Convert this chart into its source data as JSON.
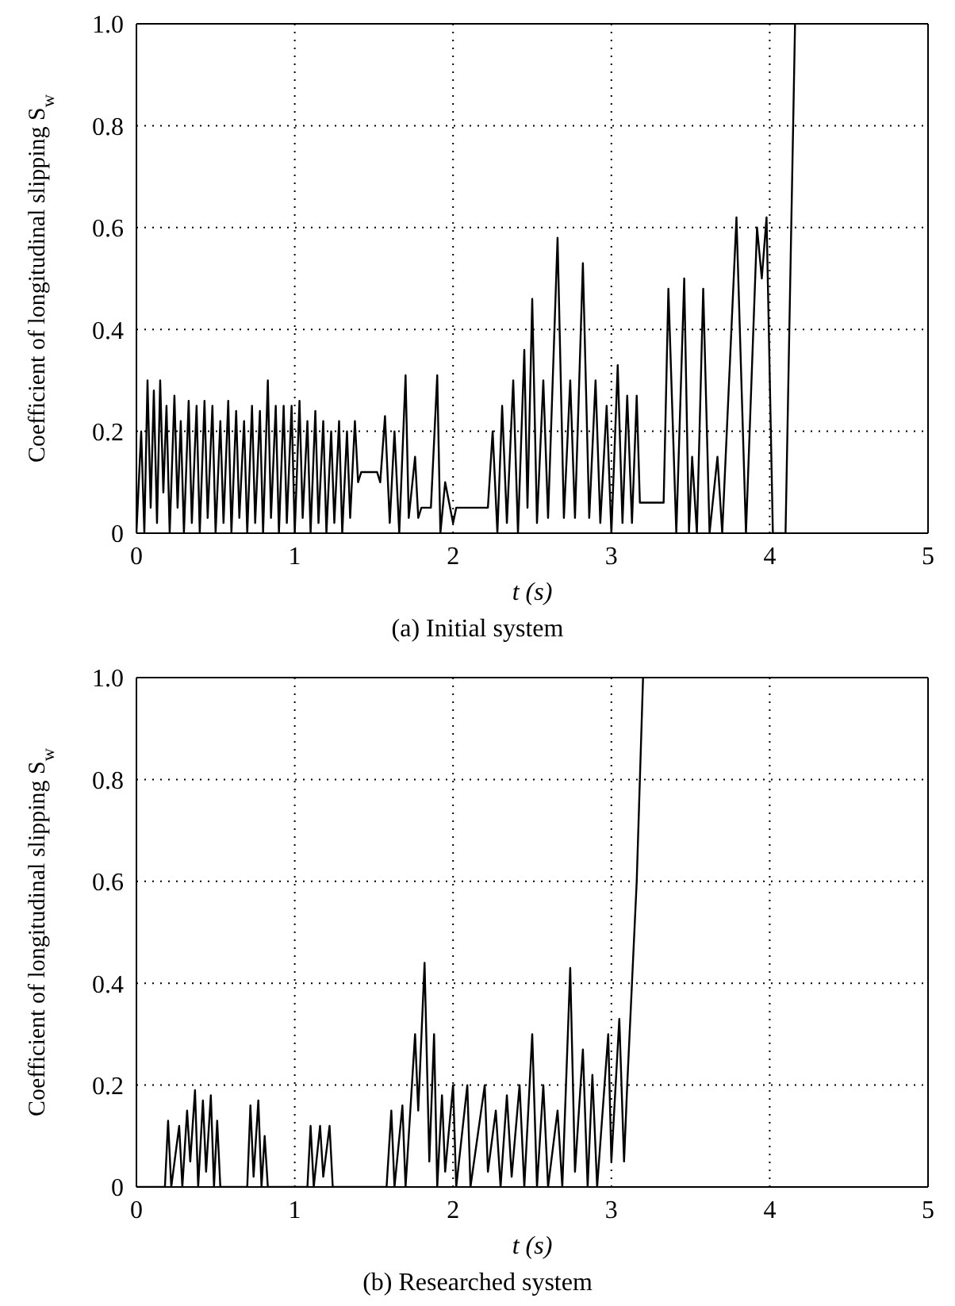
{
  "chart_data": [
    {
      "type": "line",
      "title": "(a)  Initial system",
      "xlabel": "t (s)",
      "ylabel": "Coefficient of longitudinal slipping S$_{w}$",
      "color": "#000000",
      "line_style": "solid",
      "grid": true,
      "xlim": [
        0,
        5
      ],
      "xticks": [
        0,
        1,
        2,
        3,
        4,
        5
      ],
      "ylim": [
        0,
        1
      ],
      "yticks": [
        0,
        0.2,
        0.4,
        0.6,
        0.8,
        {
          "value": 1,
          "label": "1.0"
        }
      ],
      "x": [
        0,
        0.03,
        0.05,
        0.07,
        0.09,
        0.11,
        0.13,
        0.15,
        0.17,
        0.19,
        0.21,
        0.24,
        0.26,
        0.28,
        0.3,
        0.33,
        0.35,
        0.38,
        0.4,
        0.43,
        0.45,
        0.48,
        0.5,
        0.53,
        0.55,
        0.58,
        0.6,
        0.63,
        0.65,
        0.68,
        0.7,
        0.73,
        0.75,
        0.78,
        0.8,
        0.83,
        0.85,
        0.88,
        0.9,
        0.93,
        0.95,
        0.98,
        1.0,
        1.03,
        1.05,
        1.08,
        1.1,
        1.13,
        1.15,
        1.18,
        1.2,
        1.23,
        1.25,
        1.28,
        1.3,
        1.33,
        1.35,
        1.38,
        1.4,
        1.42,
        1.52,
        1.54,
        1.57,
        1.6,
        1.63,
        1.66,
        1.7,
        1.72,
        1.76,
        1.78,
        1.8,
        1.86,
        1.9,
        1.92,
        1.95,
        2.0,
        2.02,
        2.22,
        2.25,
        2.28,
        2.31,
        2.34,
        2.38,
        2.41,
        2.45,
        2.47,
        2.5,
        2.53,
        2.57,
        2.6,
        2.66,
        2.7,
        2.74,
        2.77,
        2.82,
        2.86,
        2.9,
        2.93,
        2.97,
        3.0,
        3.04,
        3.07,
        3.1,
        3.13,
        3.16,
        3.18,
        3.33,
        3.36,
        3.41,
        3.46,
        3.49,
        3.51,
        3.54,
        3.58,
        3.62,
        3.67,
        3.7,
        3.79,
        3.85,
        3.92,
        3.95,
        3.98,
        4.02,
        4.1,
        4.16
      ],
      "values": [
        0,
        0.2,
        0,
        0.3,
        0.05,
        0.28,
        0.02,
        0.3,
        0.08,
        0.25,
        0,
        0.27,
        0.05,
        0.22,
        0,
        0.26,
        0.02,
        0.25,
        0,
        0.26,
        0.03,
        0.25,
        0,
        0.22,
        0.02,
        0.26,
        0,
        0.24,
        0.03,
        0.22,
        0,
        0.25,
        0.02,
        0.24,
        0,
        0.3,
        0.03,
        0.25,
        0,
        0.25,
        0.02,
        0.25,
        0,
        0.26,
        0.03,
        0.22,
        0,
        0.24,
        0.02,
        0.22,
        0,
        0.2,
        0.02,
        0.22,
        0,
        0.2,
        0.03,
        0.22,
        0.1,
        0.12,
        0.12,
        0.1,
        0.23,
        0.02,
        0.2,
        0,
        0.31,
        0.03,
        0.15,
        0.03,
        0.05,
        0.05,
        0.31,
        0,
        0.1,
        0.02,
        0.05,
        0.05,
        0.2,
        0,
        0.25,
        0.02,
        0.3,
        0,
        0.36,
        0.05,
        0.46,
        0.02,
        0.3,
        0.03,
        0.58,
        0.03,
        0.3,
        0.03,
        0.53,
        0.03,
        0.3,
        0.02,
        0.25,
        0,
        0.33,
        0.02,
        0.27,
        0.02,
        0.27,
        0.06,
        0.06,
        0.48,
        0,
        0.5,
        0,
        0.15,
        0,
        0.48,
        0,
        0.15,
        0,
        0.62,
        0,
        0.6,
        0.5,
        0.62,
        0,
        0,
        1.0
      ]
    },
    {
      "type": "line",
      "title": "(b)  Researched system",
      "xlabel": "t (s)",
      "ylabel": "Coefficient of longitudinal slipping S$_{w}$",
      "color": "#000000",
      "line_style": "solid",
      "grid": true,
      "xlim": [
        0,
        5
      ],
      "xticks": [
        0,
        1,
        2,
        3,
        4,
        5
      ],
      "ylim": [
        0,
        1
      ],
      "yticks": [
        0,
        0.2,
        0.4,
        0.6,
        0.8,
        {
          "value": 1,
          "label": "1.0"
        }
      ],
      "x": [
        0,
        0.18,
        0.2,
        0.22,
        0.27,
        0.29,
        0.32,
        0.34,
        0.37,
        0.39,
        0.42,
        0.44,
        0.47,
        0.49,
        0.51,
        0.53,
        0.7,
        0.72,
        0.74,
        0.77,
        0.79,
        0.81,
        0.83,
        1.08,
        1.1,
        1.12,
        1.16,
        1.18,
        1.22,
        1.24,
        1.58,
        1.61,
        1.63,
        1.68,
        1.7,
        1.76,
        1.78,
        1.82,
        1.85,
        1.88,
        1.9,
        1.93,
        1.95,
        2.0,
        2.02,
        2.09,
        2.11,
        2.2,
        2.22,
        2.27,
        2.3,
        2.34,
        2.37,
        2.42,
        2.45,
        2.5,
        2.53,
        2.57,
        2.6,
        2.66,
        2.69,
        2.74,
        2.77,
        2.82,
        2.85,
        2.88,
        2.91,
        2.98,
        3.0,
        3.05,
        3.08,
        3.1,
        3.13,
        3.16,
        3.2
      ],
      "values": [
        0,
        0,
        0.13,
        0,
        0.12,
        0,
        0.15,
        0.05,
        0.19,
        0,
        0.17,
        0.03,
        0.18,
        0,
        0.13,
        0,
        0,
        0.16,
        0.02,
        0.17,
        0,
        0.1,
        0,
        0,
        0.12,
        0,
        0.12,
        0.02,
        0.12,
        0,
        0,
        0.15,
        0,
        0.16,
        0,
        0.3,
        0.15,
        0.44,
        0.05,
        0.3,
        0,
        0.18,
        0.03,
        0.2,
        0,
        0.2,
        0,
        0.2,
        0.03,
        0.15,
        0,
        0.18,
        0.02,
        0.2,
        0,
        0.3,
        0,
        0.2,
        0,
        0.15,
        0,
        0.43,
        0.03,
        0.27,
        0,
        0.22,
        0,
        0.3,
        0.05,
        0.33,
        0.05,
        0.2,
        0.4,
        0.6,
        1.0
      ]
    }
  ]
}
